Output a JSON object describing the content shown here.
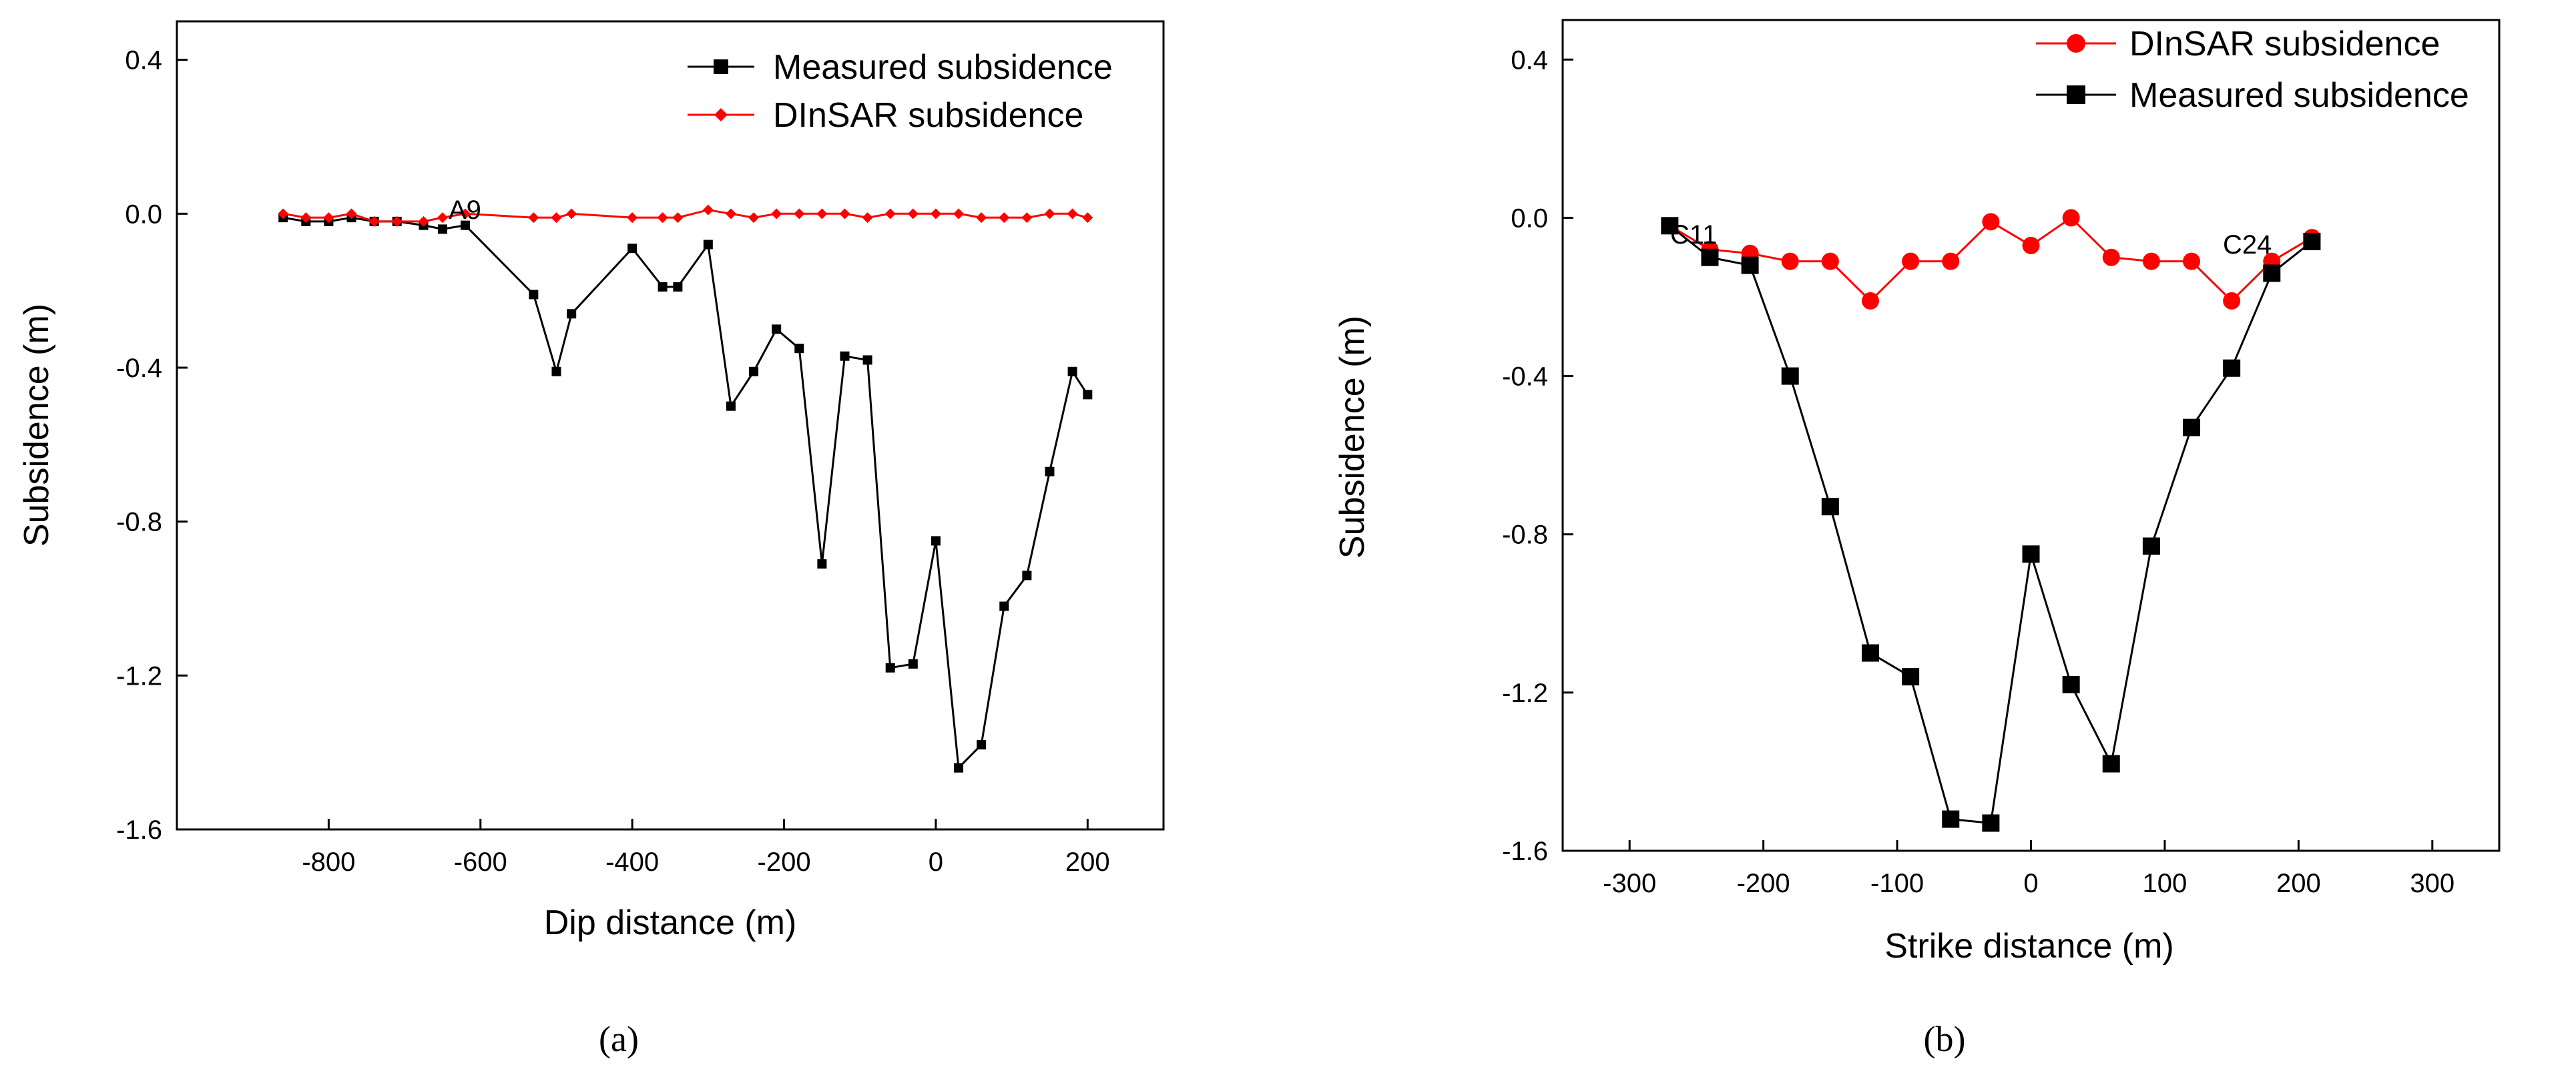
{
  "chart_data": [
    {
      "type": "line",
      "panel_label": "(a)",
      "xlabel": "Dip distance (m)",
      "ylabel": "Subsidence (m)",
      "xlim": [
        -1000,
        300
      ],
      "ylim": [
        -1.6,
        0.5
      ],
      "xticks": [
        -800,
        -600,
        -400,
        -200,
        0,
        200
      ],
      "yticks": [
        0.4,
        0.0,
        -0.4,
        -0.8,
        -1.2,
        -1.6
      ],
      "legend": [
        "Measured subsidence",
        "DInSAR subsidence"
      ],
      "legend_position": "top-right",
      "annotations": [
        {
          "text": "A9",
          "x": -620,
          "y": 0.025
        }
      ],
      "series": [
        {
          "name": "Measured subsidence",
          "color": "#000000",
          "marker": "square",
          "x": [
            -860,
            -830,
            -800,
            -770,
            -740,
            -710,
            -675,
            -650,
            -620,
            -530,
            -500,
            -480,
            -400,
            -360,
            -340,
            -300,
            -270,
            -240,
            -210,
            -180,
            -150,
            -120,
            -90,
            -60,
            -30,
            0,
            30,
            60,
            90,
            120,
            150,
            180,
            200
          ],
          "y": [
            -0.01,
            -0.02,
            -0.02,
            -0.01,
            -0.02,
            -0.02,
            -0.03,
            -0.04,
            -0.03,
            -0.21,
            -0.41,
            -0.26,
            -0.09,
            -0.19,
            -0.19,
            -0.08,
            -0.5,
            -0.41,
            -0.3,
            -0.35,
            -0.91,
            -0.37,
            -0.38,
            -1.18,
            -1.17,
            -0.85,
            -1.44,
            -1.38,
            -1.02,
            -0.94,
            -0.67,
            -0.41,
            -0.47
          ]
        },
        {
          "name": "DInSAR subsidence",
          "color": "#ff0000",
          "marker": "diamond",
          "x": [
            -860,
            -830,
            -800,
            -770,
            -740,
            -710,
            -675,
            -650,
            -620,
            -530,
            -500,
            -480,
            -400,
            -360,
            -340,
            -300,
            -270,
            -240,
            -210,
            -180,
            -150,
            -120,
            -90,
            -60,
            -30,
            0,
            30,
            60,
            90,
            120,
            150,
            180,
            200
          ],
          "y": [
            0.0,
            -0.01,
            -0.01,
            0.0,
            -0.02,
            -0.02,
            -0.02,
            -0.01,
            0.0,
            -0.01,
            -0.01,
            0.0,
            -0.01,
            -0.01,
            -0.01,
            0.01,
            0.0,
            -0.01,
            0.0,
            0.0,
            0.0,
            0.0,
            -0.01,
            0.0,
            0.0,
            0.0,
            0.0,
            -0.01,
            -0.01,
            -0.01,
            0.0,
            0.0,
            -0.01
          ]
        }
      ]
    },
    {
      "type": "line",
      "panel_label": "(b)",
      "xlabel": "Strike distance (m)",
      "ylabel": "Subsidence (m)",
      "xlim": [
        -350,
        350
      ],
      "ylim": [
        -1.6,
        0.5
      ],
      "xticks": [
        -300,
        -200,
        -100,
        0,
        100,
        200,
        300
      ],
      "yticks": [
        0.4,
        0.0,
        -0.4,
        -0.8,
        -1.2,
        -1.6
      ],
      "legend": [
        "DInSAR subsidence",
        "Measured subsidence"
      ],
      "legend_position": "top-right",
      "annotations": [
        {
          "text": "C11",
          "x": -235,
          "y": -0.02
        },
        {
          "text": "C24",
          "x": 160,
          "y": -0.03
        }
      ],
      "series": [
        {
          "name": "DInSAR subsidence",
          "color": "#ff0000",
          "marker": "circle",
          "x": [
            -270,
            -240,
            -210,
            -180,
            -150,
            -120,
            -90,
            -60,
            -30,
            0,
            30,
            60,
            90,
            120,
            150,
            180,
            210
          ],
          "y": [
            -0.02,
            -0.08,
            -0.09,
            -0.11,
            -0.11,
            -0.21,
            -0.11,
            -0.11,
            -0.01,
            -0.07,
            0.0,
            -0.1,
            -0.11,
            -0.11,
            -0.21,
            -0.11,
            -0.05
          ]
        },
        {
          "name": "Measured subsidence",
          "color": "#000000",
          "marker": "square",
          "x": [
            -270,
            -240,
            -210,
            -180,
            -150,
            -120,
            -90,
            -60,
            -30,
            0,
            30,
            60,
            90,
            120,
            150,
            180,
            210
          ],
          "y": [
            -0.02,
            -0.1,
            -0.12,
            -0.4,
            -0.73,
            -1.1,
            -1.16,
            -1.52,
            -1.53,
            -0.85,
            -1.18,
            -1.38,
            -0.83,
            -0.53,
            -0.38,
            -0.14,
            -0.06
          ]
        }
      ]
    }
  ]
}
